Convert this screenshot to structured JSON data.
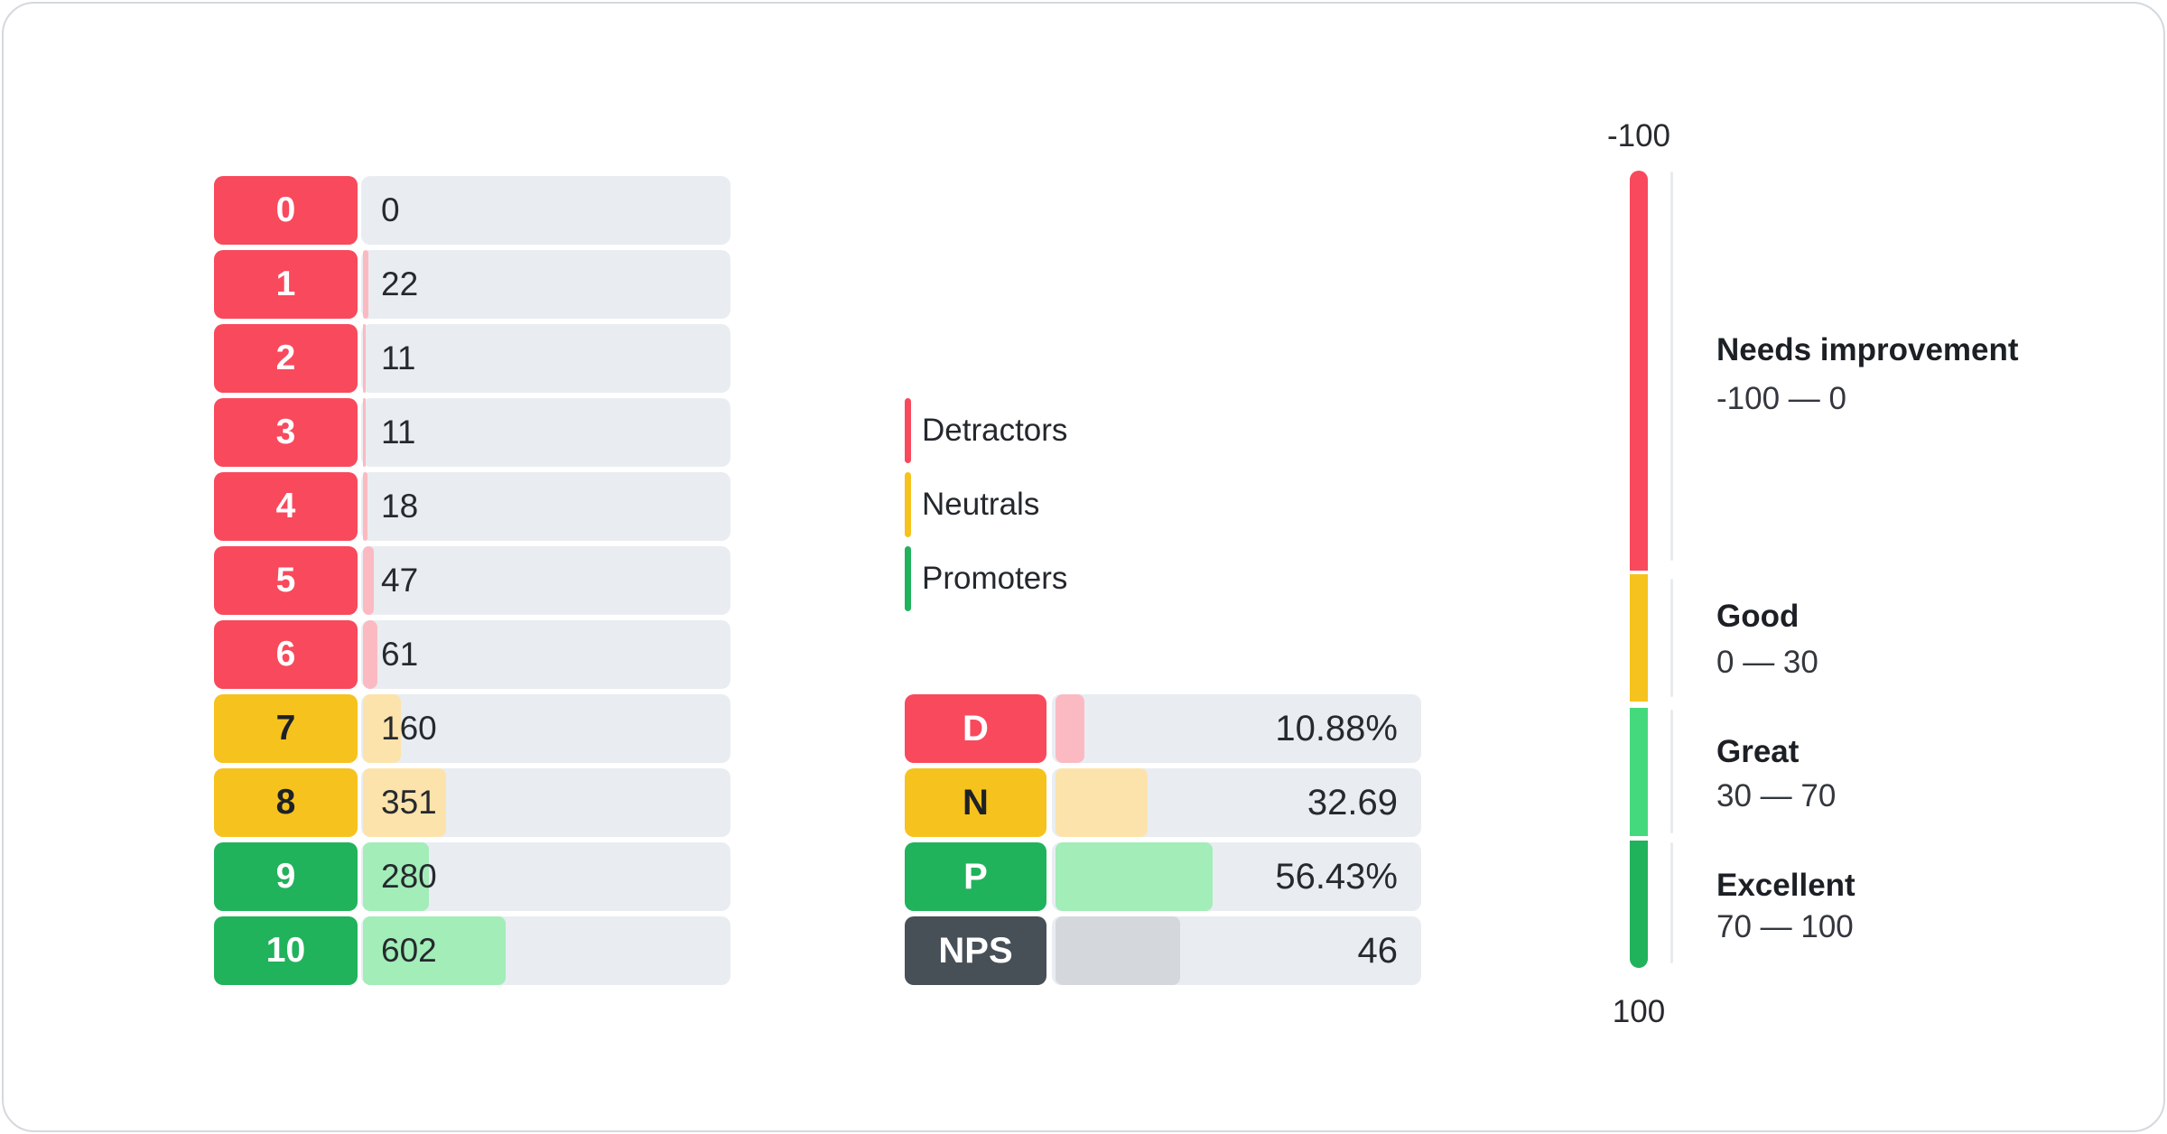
{
  "palette": {
    "detractor": "#f9495c",
    "detractor_light": "#fbbac2",
    "neutral": "#f6c21d",
    "neutral_light": "#fce3ab",
    "promoter": "#21b25c",
    "promoter_light": "#a2edb8",
    "great": "#45d97e",
    "nps": "#474f57",
    "nps_light": "#d4d8dc",
    "track": "#e9edf1",
    "line": "#e8ebee"
  },
  "distribution": {
    "rows": [
      {
        "score": "0",
        "value": "0",
        "category": "detractor",
        "fill_pct": 0
      },
      {
        "score": "1",
        "value": "22",
        "category": "detractor",
        "fill_pct": 1.41
      },
      {
        "score": "2",
        "value": "11",
        "category": "detractor",
        "fill_pct": 0.7
      },
      {
        "score": "3",
        "value": "11",
        "category": "detractor",
        "fill_pct": 0.7
      },
      {
        "score": "4",
        "value": "18",
        "category": "detractor",
        "fill_pct": 1.15
      },
      {
        "score": "5",
        "value": "47",
        "category": "detractor",
        "fill_pct": 3.01
      },
      {
        "score": "6",
        "value": "61",
        "category": "detractor",
        "fill_pct": 3.9
      },
      {
        "score": "7",
        "value": "160",
        "category": "neutral",
        "fill_pct": 10.24
      },
      {
        "score": "8",
        "value": "351",
        "category": "neutral",
        "fill_pct": 22.46
      },
      {
        "score": "9",
        "value": "280",
        "category": "promoter",
        "fill_pct": 17.91
      },
      {
        "score": "10",
        "value": "602",
        "category": "promoter",
        "fill_pct": 38.52
      }
    ]
  },
  "legend": {
    "items": [
      {
        "label": "Detractors",
        "category": "detractor"
      },
      {
        "label": "Neutrals",
        "category": "neutral"
      },
      {
        "label": "Promoters",
        "category": "promoter"
      }
    ]
  },
  "summary": {
    "rows": [
      {
        "label": "D",
        "value": "10.88%",
        "category": "detractor",
        "fill_pct": 7.75
      },
      {
        "label": "N",
        "value": "32.69",
        "category": "neutral",
        "fill_pct": 25.0
      },
      {
        "label": "P",
        "value": "56.43%",
        "category": "promoter",
        "fill_pct": 42.6
      },
      {
        "label": "NPS",
        "value": "46",
        "category": "nps",
        "fill_pct": 33.8
      }
    ]
  },
  "gauge": {
    "top_label": "-100",
    "bottom_label": "100",
    "zones": [
      {
        "name": "Needs improvement",
        "range": "-100 — 0",
        "category": "detractor"
      },
      {
        "name": "Good",
        "range": "0 — 30",
        "category": "neutral"
      },
      {
        "name": "Great",
        "range": "30 — 70",
        "category": "great"
      },
      {
        "name": "Excellent",
        "range": "70 — 100",
        "category": "promoter"
      }
    ]
  },
  "chart_data": [
    {
      "type": "bar",
      "orientation": "horizontal",
      "title": "NPS score distribution",
      "categories": [
        "0",
        "1",
        "2",
        "3",
        "4",
        "5",
        "6",
        "7",
        "8",
        "9",
        "10"
      ],
      "values": [
        0,
        22,
        11,
        11,
        18,
        47,
        61,
        160,
        351,
        280,
        602
      ],
      "series_groups": {
        "detractors": [
          "0",
          "1",
          "2",
          "3",
          "4",
          "5",
          "6"
        ],
        "neutrals": [
          "7",
          "8"
        ],
        "promoters": [
          "9",
          "10"
        ]
      },
      "xlabel": "",
      "ylabel": "",
      "grid": false,
      "legend_position": "center"
    },
    {
      "type": "bar",
      "orientation": "horizontal",
      "title": "NPS summary",
      "categories": [
        "D",
        "N",
        "P",
        "NPS"
      ],
      "values": [
        10.88,
        32.69,
        56.43,
        46
      ],
      "value_labels": [
        "10.88%",
        "32.69",
        "56.43%",
        "46"
      ]
    },
    {
      "type": "gauge",
      "title": "NPS scale",
      "min": -100,
      "max": 100,
      "value": 46,
      "zones": [
        {
          "label": "Needs improvement",
          "from": -100,
          "to": 0
        },
        {
          "label": "Good",
          "from": 0,
          "to": 30
        },
        {
          "label": "Great",
          "from": 30,
          "to": 70
        },
        {
          "label": "Excellent",
          "from": 70,
          "to": 100
        }
      ]
    }
  ]
}
